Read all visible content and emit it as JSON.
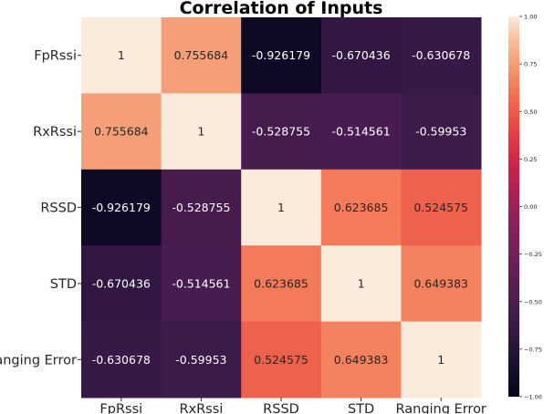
{
  "chart_data": {
    "type": "heatmap",
    "title": "Correlation of Inputs",
    "xlabel": "",
    "ylabel": "",
    "rows": [
      "FpRssi",
      "RxRssi",
      "RSSD",
      "STD",
      "Ranging Error"
    ],
    "columns": [
      "FpRssi",
      "RxRssi",
      "RSSD",
      "STD",
      "Ranging Error"
    ],
    "values": [
      [
        1,
        0.755684,
        -0.926179,
        -0.670436,
        -0.630678
      ],
      [
        0.755684,
        1,
        -0.528755,
        -0.514561,
        -0.59953
      ],
      [
        -0.926179,
        -0.528755,
        1,
        0.623685,
        0.524575
      ],
      [
        -0.670436,
        -0.514561,
        0.623685,
        1,
        0.649383
      ],
      [
        -0.630678,
        -0.59953,
        0.524575,
        0.649383,
        1
      ]
    ],
    "labels": [
      [
        "1",
        "0.755684",
        "-0.926179",
        "-0.670436",
        "-0.630678"
      ],
      [
        "0.755684",
        "1",
        "-0.528755",
        "-0.514561",
        "-0.59953"
      ],
      [
        "-0.926179",
        "-0.528755",
        "1",
        "0.623685",
        "0.524575"
      ],
      [
        "-0.670436",
        "-0.514561",
        "0.623685",
        "1",
        "0.649383"
      ],
      [
        "-0.630678",
        "-0.59953",
        "0.524575",
        "0.649383",
        "1"
      ]
    ],
    "colorbar": {
      "range": [
        -1,
        1
      ],
      "ticks": [
        1.0,
        0.75,
        0.5,
        0.25,
        0.0,
        -0.25,
        -0.5,
        -0.75,
        -1.0
      ],
      "tick_labels": [
        "1.00",
        "0.75",
        "0.50",
        "0.25",
        "0.00",
        "−0.25",
        "−0.50",
        "−0.75",
        "−1.00"
      ],
      "colormap": "rocket"
    }
  }
}
